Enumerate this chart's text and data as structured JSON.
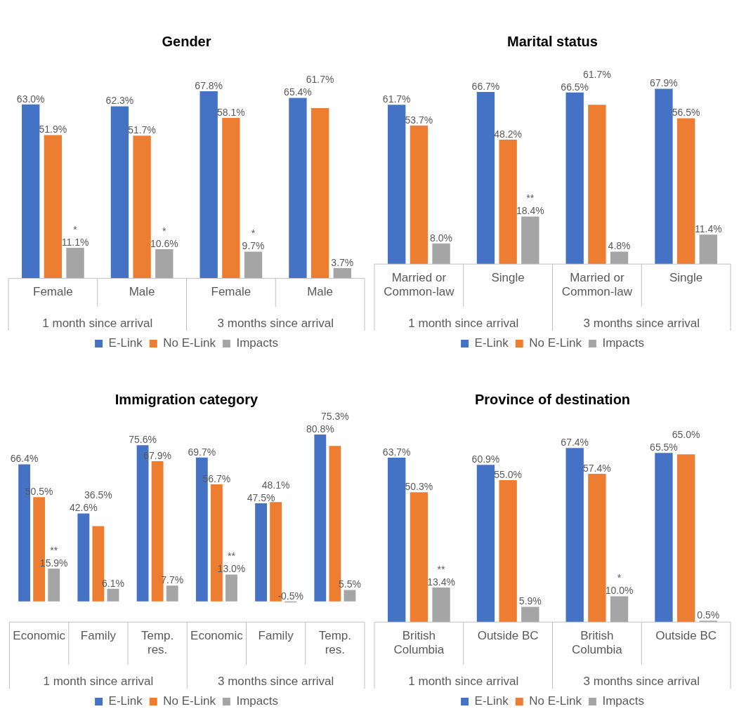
{
  "chart_data": [
    {
      "type": "bar",
      "title": "Gender",
      "categories": [
        "Female",
        "Male",
        "Female",
        "Male"
      ],
      "annotations": [
        "1 month since arrival",
        "3 months since arrival"
      ],
      "legend": "bottom",
      "grid": false,
      "series": [
        {
          "name": "E-Link",
          "color": "#4472c4",
          "values": [
            63.0,
            62.3,
            67.8,
            65.4
          ],
          "value_labels": [
            "63.0%",
            "62.3%",
            "67.8%",
            "65.4%"
          ]
        },
        {
          "name": "No E-Link",
          "color": "#ed7d31",
          "values": [
            51.9,
            51.7,
            58.1,
            61.7
          ],
          "value_labels": [
            "51.9%",
            "51.7%",
            "58.1%",
            "61.7%"
          ]
        },
        {
          "name": "Impacts",
          "color": "#a5a5a5",
          "values": [
            11.1,
            10.6,
            9.7,
            3.7
          ],
          "value_labels": [
            "*\n11.1%",
            "*\n10.6%",
            "*\n9.7%",
            "3.7%"
          ]
        }
      ]
    },
    {
      "type": "bar",
      "title": "Marital status",
      "categories": [
        "Married or Common-law",
        "Single",
        "Married or Common-law",
        "Single"
      ],
      "annotations": [
        "1 month since arrival",
        "3 months since arrival"
      ],
      "legend": "bottom",
      "grid": false,
      "series": [
        {
          "name": "E-Link",
          "color": "#4472c4",
          "values": [
            61.7,
            66.7,
            66.5,
            67.9
          ],
          "value_labels": [
            "61.7%",
            "66.7%",
            "66.5%",
            "67.9%"
          ]
        },
        {
          "name": "No E-Link",
          "color": "#ed7d31",
          "values": [
            53.7,
            48.2,
            61.7,
            56.5
          ],
          "value_labels": [
            "53.7%",
            "48.2%",
            "61.7%",
            "56.5%"
          ]
        },
        {
          "name": "Impacts",
          "color": "#a5a5a5",
          "values": [
            8.0,
            18.4,
            4.8,
            11.4
          ],
          "value_labels": [
            "8.0%",
            "**\n18.4%",
            "4.8%",
            "11.4%"
          ]
        }
      ]
    },
    {
      "type": "bar",
      "title": "Immigration category",
      "categories": [
        "Economic",
        "Family",
        "Temp. res.",
        "Economic",
        "Family",
        "Temp. res."
      ],
      "annotations": [
        "1 month since arrival",
        "3 months since arrival"
      ],
      "legend": "bottom",
      "grid": false,
      "series": [
        {
          "name": "E-Link",
          "color": "#4472c4",
          "values": [
            66.4,
            42.6,
            75.6,
            69.7,
            47.5,
            80.8
          ],
          "value_labels": [
            "66.4%",
            "42.6%",
            "75.6%",
            "69.7%",
            "47.5%",
            "80.8%"
          ]
        },
        {
          "name": "No E-Link",
          "color": "#ed7d31",
          "values": [
            50.5,
            36.5,
            67.9,
            56.7,
            48.1,
            75.3
          ],
          "value_labels": [
            "50.5%",
            "36.5%",
            "67.9%",
            "56.7%",
            "48.1%",
            "75.3%"
          ]
        },
        {
          "name": "Impacts",
          "color": "#a5a5a5",
          "values": [
            15.9,
            6.1,
            7.7,
            13.0,
            -0.5,
            5.5
          ],
          "value_labels": [
            "**\n15.9%",
            "6.1%",
            "7.7%",
            "**\n13.0%",
            "-0.5%",
            "5.5%"
          ]
        }
      ]
    },
    {
      "type": "bar",
      "title": "Province of destination",
      "categories": [
        "British Columbia",
        "Outside BC",
        "British Columbia",
        "Outside BC"
      ],
      "annotations": [
        "1 month since arrival",
        "3 months since arrival"
      ],
      "legend": "bottom",
      "grid": false,
      "series": [
        {
          "name": "E-Link",
          "color": "#4472c4",
          "values": [
            63.7,
            60.9,
            67.4,
            65.5
          ],
          "value_labels": [
            "63.7%",
            "60.9%",
            "67.4%",
            "65.5%"
          ]
        },
        {
          "name": "No E-Link",
          "color": "#ed7d31",
          "values": [
            50.3,
            55.0,
            57.4,
            65.0
          ],
          "value_labels": [
            "50.3%",
            "55.0%",
            "57.4%",
            "65.0%"
          ]
        },
        {
          "name": "Impacts",
          "color": "#a5a5a5",
          "values": [
            13.4,
            5.9,
            10.0,
            0.5
          ],
          "value_labels": [
            "**\n13.4%",
            "5.9%",
            "*\n10.0%",
            "0.5%"
          ]
        }
      ]
    }
  ]
}
